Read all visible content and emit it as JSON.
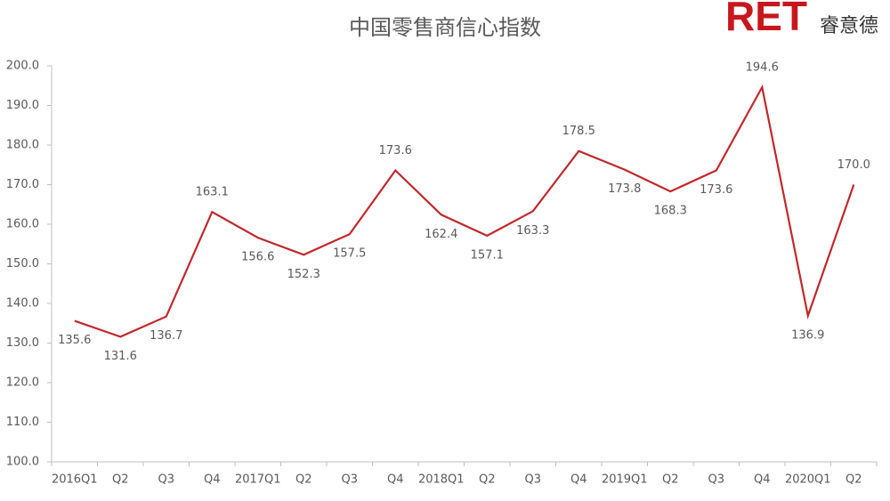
{
  "chart_data": {
    "type": "line",
    "title": "中国零售商信心指数",
    "brand": "RET",
    "brand_name": "睿意德",
    "categories": [
      "2016Q1",
      "Q2",
      "Q3",
      "Q4",
      "2017Q1",
      "Q2",
      "Q3",
      "Q4",
      "2018Q1",
      "Q2",
      "Q3",
      "Q4",
      "2019Q1",
      "Q2",
      "Q3",
      "Q4",
      "2020Q1",
      "Q2"
    ],
    "series": [
      {
        "color": "#c0282d",
        "values": [
          135.6,
          131.6,
          136.7,
          163.1,
          156.6,
          152.3,
          157.5,
          173.6,
          162.4,
          157.1,
          163.3,
          178.5,
          173.8,
          168.3,
          173.6,
          194.6,
          136.9,
          170.0
        ],
        "value_labels": [
          "135.6",
          "131.6",
          "136.7",
          "163.1",
          "156.6",
          "152.3",
          "157.5",
          "173.6",
          "162.4",
          "157.1",
          "163.3",
          "178.5",
          "173.8",
          "168.3",
          "173.6",
          "194.6",
          "136.9",
          "170.0"
        ]
      }
    ],
    "ylim": [
      100,
      200
    ],
    "yticks": [
      {
        "value": 100,
        "label": "100.0"
      },
      {
        "value": 110,
        "label": "110.0"
      },
      {
        "value": 120,
        "label": "120.0"
      },
      {
        "value": 130,
        "label": "130.0"
      },
      {
        "value": 140,
        "label": "140.0"
      },
      {
        "value": 150,
        "label": "150.0"
      },
      {
        "value": 160,
        "label": "160.0"
      },
      {
        "value": 170,
        "label": "170.0"
      },
      {
        "value": 180,
        "label": "180.0"
      },
      {
        "value": 190,
        "label": "190.0"
      },
      {
        "value": 200,
        "label": "200.0"
      }
    ],
    "grid": false
  }
}
